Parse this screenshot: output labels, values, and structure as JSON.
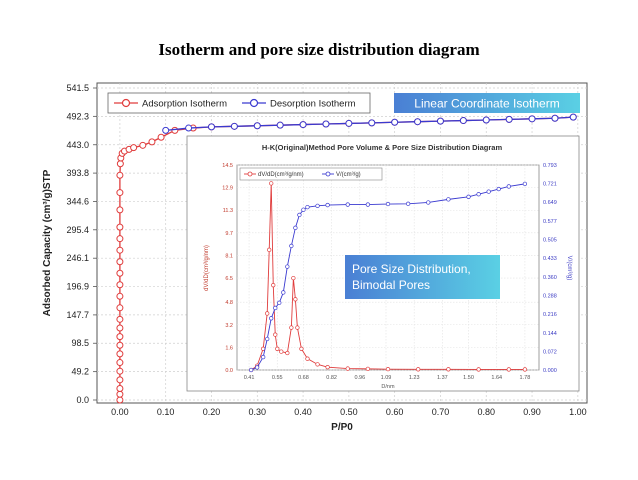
{
  "page_title": "Isotherm and pore size distribution diagram",
  "colors": {
    "adsorption": "#e03c3c",
    "desorption": "#3a3ad0",
    "badge_from": "#4a7fd4",
    "badge_to": "#5ad0e4"
  },
  "chart_data": [
    {
      "type": "line",
      "xlabel": "P/P0",
      "ylabel": "Adsorbed Capacity (cm³/g)STP",
      "xlim": [
        -0.05,
        1.02
      ],
      "ylim": [
        0,
        541.5
      ],
      "x_ticks": [
        "0.00",
        "0.10",
        "0.20",
        "0.30",
        "0.40",
        "0.50",
        "0.60",
        "0.70",
        "0.80",
        "0.90",
        "1.00"
      ],
      "y_ticks": [
        "0.0",
        "49.2",
        "98.5",
        "147.7",
        "196.9",
        "246.1",
        "295.4",
        "344.6",
        "393.8",
        "443.0",
        "492.3",
        "541.5"
      ],
      "legend": [
        "Adsorption Isotherm",
        "Desorption Isotherm"
      ],
      "annotation": "Linear Coordinate Isotherm",
      "series": [
        {
          "name": "Adsorption Isotherm",
          "x": [
            0.0,
            0.0,
            0.0,
            0.0,
            0.0,
            0.0,
            0.0,
            0.0,
            0.0,
            0.0,
            0.0,
            0.0,
            0.0,
            0.0,
            0.0,
            0.0,
            0.0,
            0.0,
            0.0,
            0.0,
            0.0,
            0.0,
            0.001,
            0.002,
            0.005,
            0.01,
            0.02,
            0.03,
            0.05,
            0.07,
            0.09,
            0.12,
            0.16,
            0.2,
            0.25,
            0.3,
            0.35,
            0.4,
            0.45,
            0.5,
            0.55,
            0.6,
            0.65,
            0.7,
            0.75,
            0.8,
            0.85,
            0.9,
            0.95,
            0.99
          ],
          "y": [
            0,
            10,
            20,
            35,
            50,
            65,
            80,
            95,
            110,
            125,
            140,
            160,
            180,
            200,
            220,
            240,
            260,
            280,
            300,
            330,
            360,
            390,
            410,
            420,
            428,
            432,
            435,
            438,
            442,
            448,
            456,
            468,
            472,
            474,
            475,
            476,
            477,
            478,
            479,
            480,
            481,
            482,
            483,
            484,
            485,
            486,
            487,
            488,
            489,
            491
          ]
        },
        {
          "name": "Desorption Isotherm",
          "x": [
            0.99,
            0.95,
            0.9,
            0.85,
            0.8,
            0.75,
            0.7,
            0.65,
            0.6,
            0.55,
            0.5,
            0.45,
            0.4,
            0.35,
            0.3,
            0.25,
            0.2,
            0.15,
            0.1
          ],
          "y": [
            491,
            489,
            488,
            487,
            486,
            485,
            484,
            483,
            482,
            481,
            480,
            479,
            478,
            477,
            476,
            475,
            474,
            472,
            468
          ]
        }
      ]
    },
    {
      "type": "line",
      "title": "H-K(Original)Method Pore Volume & Pore Size Distribution Diagram",
      "xlabel": "D/nm",
      "ylabel": "dV/dD(cm³/g/nm)",
      "y2label": "V/(cm³/g)",
      "xlim": [
        0.35,
        1.85
      ],
      "ylim": [
        0,
        14.5
      ],
      "y2lim": [
        0,
        0.793
      ],
      "x_ticks": [
        "0.41",
        "0.55",
        "0.68",
        "0.82",
        "0.96",
        "1.09",
        "1.23",
        "1.37",
        "1.50",
        "1.64",
        "1.78"
      ],
      "y_ticks": [
        "0.0",
        "1.6",
        "3.2",
        "4.8",
        "6.5",
        "8.1",
        "9.7",
        "11.3",
        "12.9",
        "14.5"
      ],
      "y2_ticks": [
        "0.000",
        "0.072",
        "0.144",
        "0.216",
        "0.288",
        "0.360",
        "0.433",
        "0.505",
        "0.577",
        "0.649",
        "0.721",
        "0.793"
      ],
      "legend": [
        "dV/dD(cm³/g/nm)",
        "V/(cm³/g)"
      ],
      "annotation": "Pore Size Distribution,\nBimodal Pores",
      "series": [
        {
          "name": "dV/dD(cm³/g/nm)",
          "x": [
            0.42,
            0.45,
            0.48,
            0.5,
            0.51,
            0.52,
            0.53,
            0.54,
            0.55,
            0.57,
            0.6,
            0.62,
            0.63,
            0.64,
            0.65,
            0.67,
            0.7,
            0.75,
            0.8,
            0.9,
            1.0,
            1.1,
            1.25,
            1.4,
            1.55,
            1.7,
            1.78
          ],
          "y": [
            0.0,
            0.3,
            1.5,
            4.0,
            8.5,
            13.2,
            6.0,
            2.5,
            1.5,
            1.3,
            1.2,
            3.0,
            6.5,
            5.0,
            3.0,
            1.5,
            0.8,
            0.4,
            0.2,
            0.1,
            0.08,
            0.06,
            0.05,
            0.05,
            0.04,
            0.04,
            0.04
          ]
        },
        {
          "name": "V/(cm³/g)",
          "x": [
            0.42,
            0.45,
            0.48,
            0.5,
            0.52,
            0.54,
            0.56,
            0.58,
            0.6,
            0.62,
            0.64,
            0.66,
            0.68,
            0.7,
            0.75,
            0.8,
            0.9,
            1.0,
            1.1,
            1.2,
            1.3,
            1.4,
            1.5,
            1.55,
            1.6,
            1.65,
            1.7,
            1.78
          ],
          "y": [
            0.0,
            0.01,
            0.05,
            0.12,
            0.2,
            0.24,
            0.26,
            0.3,
            0.4,
            0.48,
            0.55,
            0.6,
            0.62,
            0.63,
            0.635,
            0.638,
            0.64,
            0.64,
            0.642,
            0.643,
            0.648,
            0.66,
            0.67,
            0.68,
            0.69,
            0.7,
            0.71,
            0.72
          ]
        }
      ]
    }
  ]
}
